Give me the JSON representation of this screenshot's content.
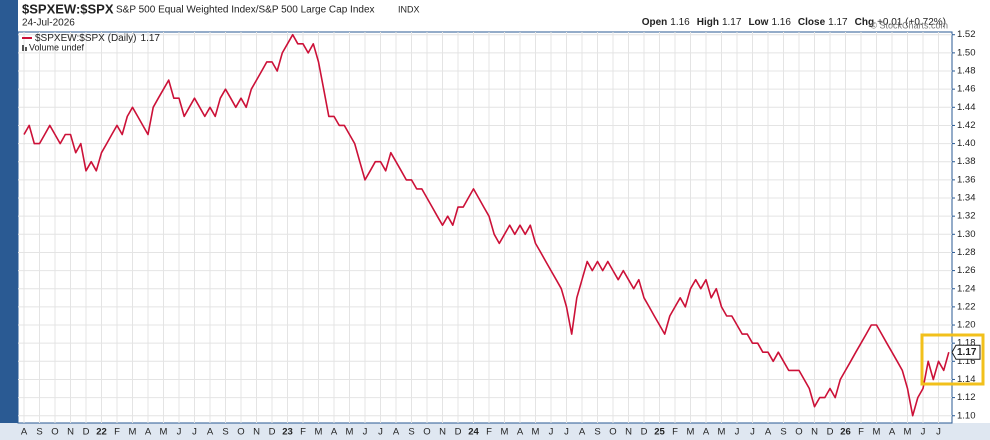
{
  "chart_data": {
    "type": "line",
    "title": "$SPXEW:$SPX",
    "subtitle": "S&P 500 Equal Weighted Index/S&P 500 Large Cap Index",
    "exchange": "INDX",
    "date": "24-Jul-2026",
    "quote": [
      {
        "label": "Open",
        "value": 1.16
      },
      {
        "label": "High",
        "value": 1.17
      },
      {
        "label": "Low",
        "value": 1.16
      },
      {
        "label": "Close",
        "value": 1.17
      },
      {
        "label": "Chg",
        "value": "+0.01 (+0.72%)"
      }
    ],
    "credit": "© StockCharts.com",
    "volume_note": "Volume undef",
    "last_value": 1.17,
    "categories": [
      "A",
      null,
      null,
      "S",
      null,
      null,
      "O",
      null,
      null,
      "N",
      null,
      null,
      "D",
      null,
      null,
      "22",
      null,
      null,
      "F",
      null,
      null,
      "M",
      null,
      null,
      "A",
      null,
      null,
      "M",
      null,
      null,
      "J",
      null,
      null,
      "J",
      null,
      null,
      "A",
      null,
      null,
      "S",
      null,
      null,
      "O",
      null,
      null,
      "N",
      null,
      null,
      "D",
      null,
      null,
      "23",
      null,
      null,
      "F",
      null,
      null,
      "M",
      null,
      null,
      "A",
      null,
      null,
      "M",
      null,
      null,
      "J",
      null,
      null,
      "J",
      null,
      null,
      "A",
      null,
      null,
      "S",
      null,
      null,
      "O",
      null,
      null,
      "N",
      null,
      null,
      "D",
      null,
      null,
      "24",
      null,
      null,
      "F",
      null,
      null,
      "M",
      null,
      null,
      "A",
      null,
      null,
      "M",
      null,
      null,
      "J",
      null,
      null,
      "J",
      null,
      null,
      "A",
      null,
      null,
      "S",
      null,
      null,
      "O",
      null,
      null,
      "N",
      null,
      null,
      "D",
      null,
      null,
      "25",
      null,
      null,
      "F",
      null,
      null,
      "M",
      null,
      null,
      "A",
      null,
      null,
      "M",
      null,
      null,
      "J",
      null,
      null,
      "J",
      null,
      null,
      "A",
      null,
      null,
      "S",
      null,
      null,
      "O",
      null,
      null,
      "N",
      null,
      null,
      "D",
      null,
      null,
      "26",
      null,
      null,
      "F",
      null,
      null,
      "M",
      null,
      null,
      "A",
      null,
      null,
      "M",
      null,
      null,
      "J",
      null,
      null,
      "J",
      null,
      null
    ],
    "series": [
      {
        "name": "$SPXEW:$SPX (Daily)",
        "color": "#cc1138",
        "values": [
          1.41,
          1.42,
          1.4,
          1.4,
          1.41,
          1.42,
          1.41,
          1.4,
          1.41,
          1.41,
          1.39,
          1.4,
          1.37,
          1.38,
          1.37,
          1.39,
          1.4,
          1.41,
          1.42,
          1.41,
          1.43,
          1.44,
          1.43,
          1.42,
          1.41,
          1.44,
          1.45,
          1.46,
          1.47,
          1.45,
          1.45,
          1.43,
          1.44,
          1.45,
          1.44,
          1.43,
          1.44,
          1.43,
          1.45,
          1.46,
          1.45,
          1.44,
          1.45,
          1.44,
          1.46,
          1.47,
          1.48,
          1.49,
          1.49,
          1.48,
          1.5,
          1.51,
          1.52,
          1.51,
          1.51,
          1.5,
          1.51,
          1.49,
          1.46,
          1.43,
          1.43,
          1.42,
          1.42,
          1.41,
          1.4,
          1.38,
          1.36,
          1.37,
          1.38,
          1.38,
          1.37,
          1.39,
          1.38,
          1.37,
          1.36,
          1.36,
          1.35,
          1.35,
          1.34,
          1.33,
          1.32,
          1.31,
          1.32,
          1.31,
          1.33,
          1.33,
          1.34,
          1.35,
          1.34,
          1.33,
          1.32,
          1.3,
          1.29,
          1.3,
          1.31,
          1.3,
          1.31,
          1.3,
          1.31,
          1.29,
          1.28,
          1.27,
          1.26,
          1.25,
          1.24,
          1.22,
          1.19,
          1.23,
          1.25,
          1.27,
          1.26,
          1.27,
          1.26,
          1.27,
          1.26,
          1.25,
          1.26,
          1.25,
          1.24,
          1.25,
          1.23,
          1.22,
          1.21,
          1.2,
          1.19,
          1.21,
          1.22,
          1.23,
          1.22,
          1.24,
          1.25,
          1.24,
          1.25,
          1.23,
          1.24,
          1.22,
          1.21,
          1.21,
          1.2,
          1.19,
          1.19,
          1.18,
          1.18,
          1.17,
          1.17,
          1.16,
          1.17,
          1.16,
          1.15,
          1.15,
          1.15,
          1.14,
          1.13,
          1.11,
          1.12,
          1.12,
          1.13,
          1.12,
          1.14,
          1.15,
          1.16,
          1.17,
          1.18,
          1.19,
          1.2,
          1.2,
          1.19,
          1.18,
          1.17,
          1.16,
          1.15,
          1.13,
          1.1,
          1.12,
          1.13,
          1.16,
          1.14,
          1.16,
          1.15,
          1.17
        ]
      }
    ],
    "ylim": [
      1.092,
      1.523
    ],
    "yticks": [
      {
        "value": 1.1,
        "label": "1.10"
      },
      1.12,
      1.14,
      1.16,
      1.18,
      {
        "value": 1.2,
        "label": "1.20"
      },
      1.22,
      1.24,
      1.26,
      1.28,
      {
        "value": 1.3,
        "label": "1.30"
      },
      1.32,
      1.34,
      1.36,
      1.38,
      {
        "value": 1.4,
        "label": "1.40"
      },
      1.42,
      1.44,
      1.46,
      1.48,
      {
        "value": 1.5,
        "label": "1.50"
      },
      1.52
    ],
    "grid": true
  }
}
